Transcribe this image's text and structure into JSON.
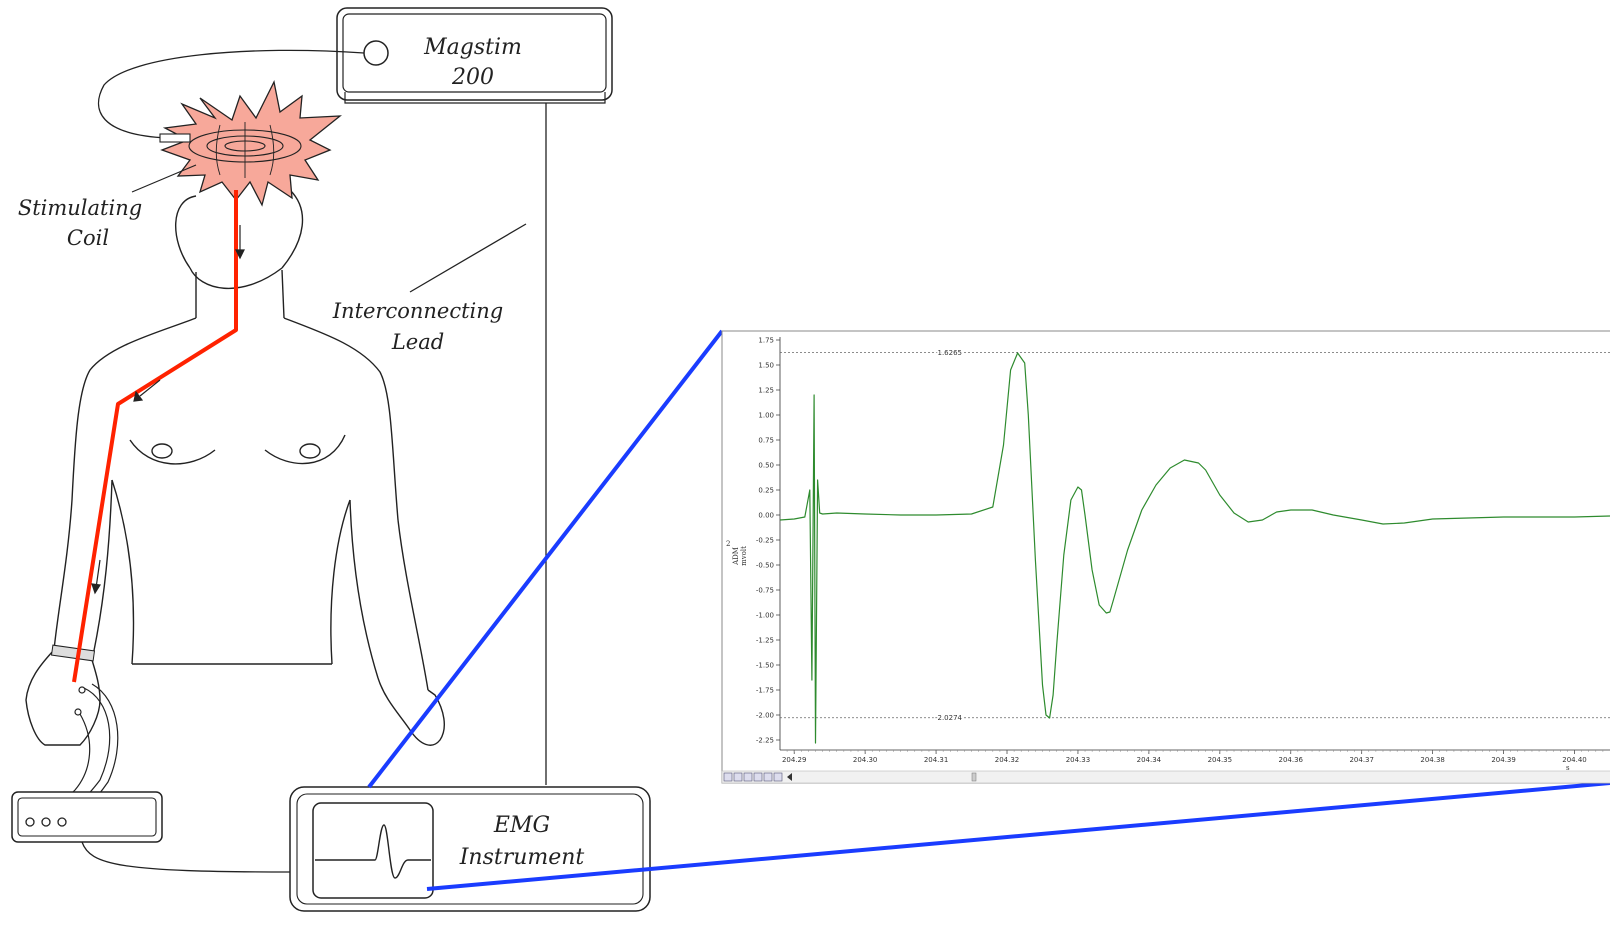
{
  "labels": {
    "stimulator_line1": "Magstim",
    "stimulator_line2": "200",
    "coil_line1": "Stimulating",
    "coil_line2": "Coil",
    "lead_line1": "Interconnecting",
    "lead_line2": "Lead",
    "emg_line1": "EMG",
    "emg_line2": "Instrument"
  },
  "colors": {
    "nerve_path": "#ff2200",
    "zoom_lines": "#1a3cff",
    "trace": "#2e8b2e",
    "coil_fill": "#f7a89a",
    "outline": "#222222"
  },
  "chart_data": {
    "type": "line",
    "channel_number": "2",
    "ylabel_line1": "ADM",
    "ylabel_line2": "mvolt",
    "xlabel": "s",
    "xlim": [
      204.288,
      204.405
    ],
    "ylim": [
      -2.35,
      1.78
    ],
    "x_ticks": [
      "204.29",
      "204.30",
      "204.31",
      "204.32",
      "204.33",
      "204.34",
      "204.35",
      "204.36",
      "204.37",
      "204.38",
      "204.39",
      "204.40"
    ],
    "y_ticks": [
      "1.75",
      "1.50",
      "1.25",
      "1.00",
      "0.75",
      "0.50",
      "0.25",
      "0.00",
      "-0.25",
      "-0.50",
      "-0.75",
      "-1.00",
      "-1.25",
      "-1.50",
      "-1.75",
      "-2.00",
      "-2.25"
    ],
    "cursor_max": {
      "label": "1.6265",
      "value": 1.6265
    },
    "cursor_min": {
      "label": "-2.0274",
      "value": -2.0274
    },
    "series": [
      {
        "x": [
          204.288,
          204.29,
          204.2915,
          204.2922,
          204.2925,
          204.2928,
          204.293,
          204.2933,
          204.2936,
          204.294,
          204.296,
          204.3,
          204.305,
          204.31,
          204.315,
          204.318,
          204.3195,
          204.3205,
          204.3215,
          204.3225,
          204.323,
          204.324,
          204.325,
          204.3255,
          204.326,
          204.3265,
          204.327,
          204.328,
          204.329,
          204.33,
          204.3305,
          204.331,
          204.332,
          204.333,
          204.334,
          204.3345,
          204.335,
          204.337,
          204.339,
          204.341,
          204.343,
          204.345,
          204.347,
          204.348,
          204.35,
          204.352,
          204.354,
          204.356,
          204.358,
          204.36,
          204.363,
          204.366,
          204.37,
          204.373,
          204.376,
          204.378,
          204.38,
          204.385,
          204.39,
          204.395,
          204.4,
          204.405
        ],
        "y": [
          -0.05,
          -0.04,
          -0.02,
          0.25,
          -1.65,
          1.2,
          -2.28,
          0.35,
          0.02,
          0.01,
          0.02,
          0.01,
          0.0,
          0.0,
          0.01,
          0.08,
          0.7,
          1.45,
          1.62,
          1.52,
          1.0,
          -0.45,
          -1.7,
          -2.0,
          -2.03,
          -1.8,
          -1.3,
          -0.4,
          0.15,
          0.28,
          0.25,
          0.0,
          -0.55,
          -0.9,
          -0.98,
          -0.97,
          -0.85,
          -0.35,
          0.05,
          0.3,
          0.47,
          0.55,
          0.52,
          0.45,
          0.2,
          0.02,
          -0.07,
          -0.05,
          0.03,
          0.05,
          0.05,
          0.0,
          -0.05,
          -0.09,
          -0.08,
          -0.06,
          -0.04,
          -0.03,
          -0.02,
          -0.02,
          -0.02,
          -0.01
        ]
      }
    ]
  }
}
